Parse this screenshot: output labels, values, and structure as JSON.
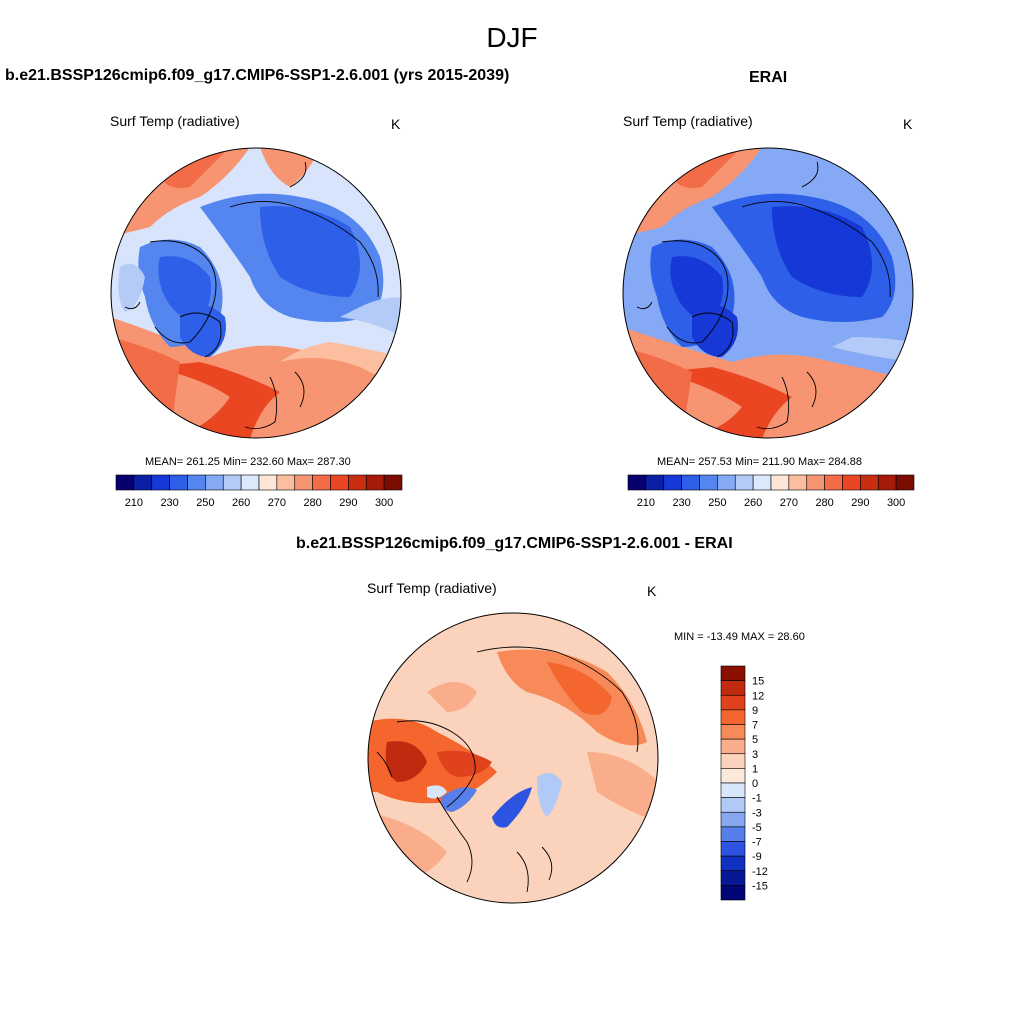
{
  "title": "DJF",
  "panels": {
    "model": {
      "title": "b.e21.BSSP126cmip6.f09_g17.CMIP6-SSP1-2.6.001 (yrs 2015-2039)",
      "variable": "Surf Temp (radiative)",
      "units": "K",
      "stats": "MEAN= 261.25  Min= 232.60  Max= 287.30"
    },
    "obs": {
      "title": "ERAI",
      "variable": "Surf Temp (radiative)",
      "units": "K",
      "stats": "MEAN= 257.53  Min= 211.90  Max= 284.88"
    },
    "diff": {
      "title": "b.e21.BSSP126cmip6.f09_g17.CMIP6-SSP1-2.6.001 - ERAI",
      "variable": "Surf Temp (radiative)",
      "units": "K",
      "stats": "MIN = -13.49 MAX =  28.60"
    }
  },
  "abs_colorbar": {
    "colors": [
      "#08006e",
      "#0a1fa6",
      "#1638d6",
      "#2d5fe8",
      "#5585ef",
      "#85a9f4",
      "#b4cbf8",
      "#dce8fb",
      "#fde6d6",
      "#fbbf9f",
      "#f79572",
      "#f36c48",
      "#ea4622",
      "#c92e10",
      "#a51a08",
      "#7a0c02"
    ],
    "tick_labels": [
      "210",
      "230",
      "250",
      "260",
      "270",
      "280",
      "290",
      "300"
    ]
  },
  "diff_colorbar": {
    "colors": [
      "#8c1002",
      "#c02a0e",
      "#e0421e",
      "#f4662e",
      "#f78a58",
      "#f9ad8a",
      "#fbd2bb",
      "#fde9dc",
      "#d8e6fb",
      "#b0c9f6",
      "#86a8f1",
      "#577ee9",
      "#2c54e0",
      "#1131c2",
      "#061896",
      "#000678"
    ],
    "tick_labels": [
      "15",
      "12",
      "9",
      "7",
      "5",
      "3",
      "1",
      "0",
      "-1",
      "-3",
      "-5",
      "-7",
      "-9",
      "-12",
      "-15"
    ]
  }
}
